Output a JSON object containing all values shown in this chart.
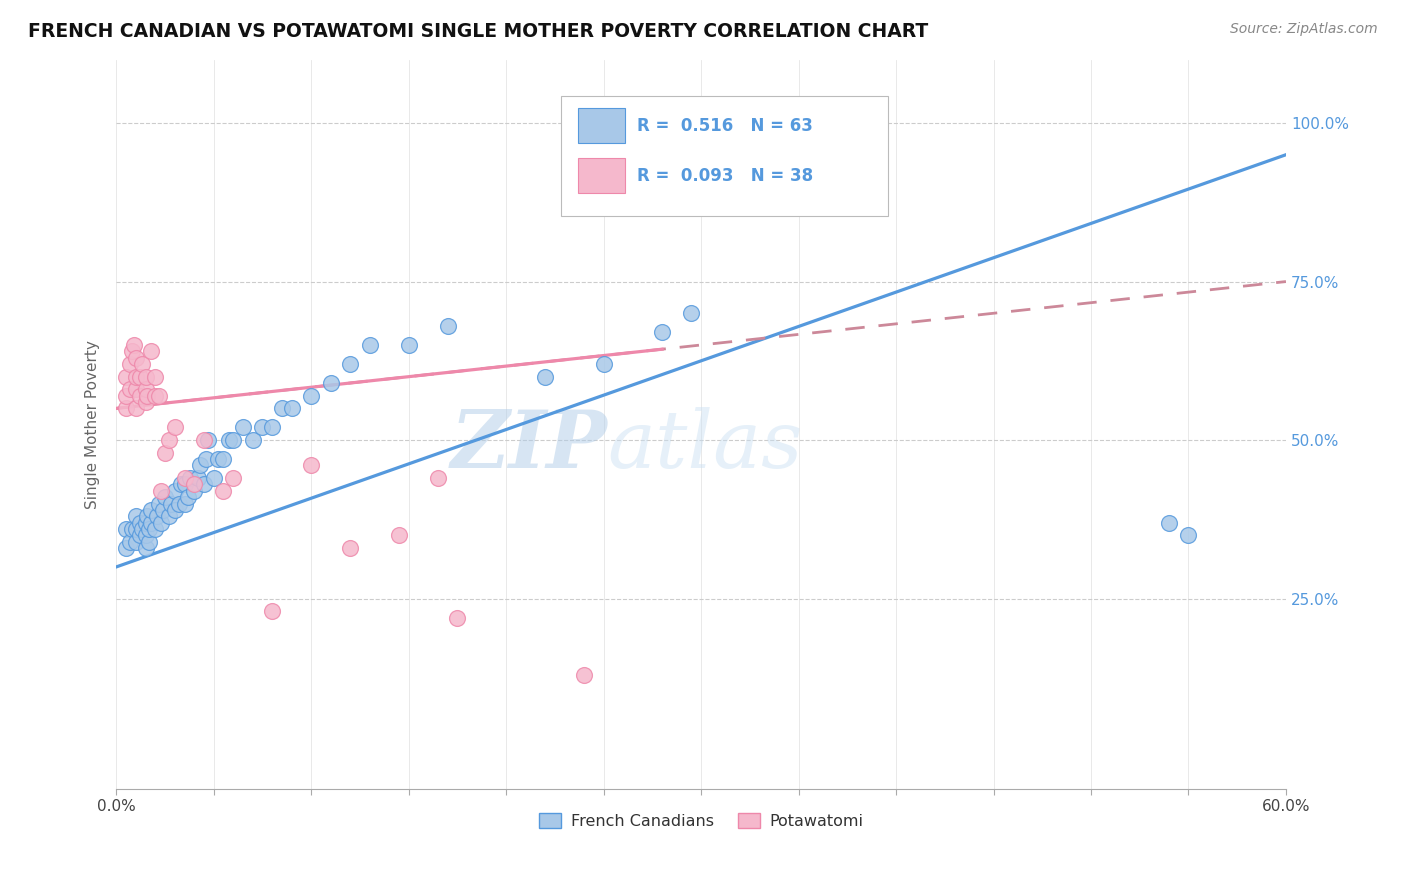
{
  "title": "FRENCH CANADIAN VS POTAWATOMI SINGLE MOTHER POVERTY CORRELATION CHART",
  "source": "Source: ZipAtlas.com",
  "ylabel": "Single Mother Poverty",
  "xlim": [
    0.0,
    0.6
  ],
  "ylim": [
    -0.05,
    1.1
  ],
  "plot_ylim": [
    -0.05,
    1.1
  ],
  "xtick_values": [
    0.0,
    0.1,
    0.2,
    0.3,
    0.4,
    0.5,
    0.6
  ],
  "xtick_show": [
    0.0,
    0.6
  ],
  "ytick_values": [
    0.25,
    0.5,
    0.75,
    1.0
  ],
  "ytick_labels": [
    "25.0%",
    "50.0%",
    "75.0%",
    "100.0%"
  ],
  "blue_R": 0.516,
  "blue_N": 63,
  "pink_R": 0.093,
  "pink_N": 38,
  "blue_color": "#a8c8e8",
  "pink_color": "#f5b8cc",
  "blue_line_color": "#5599dd",
  "pink_line_color": "#ee88aa",
  "pink_line_dashed_color": "#cc8899",
  "watermark_color": "#c5ddf0",
  "legend_label_blue": "French Canadians",
  "legend_label_pink": "Potawatomi",
  "blue_scatter_x": [
    0.005,
    0.005,
    0.007,
    0.008,
    0.01,
    0.01,
    0.01,
    0.012,
    0.012,
    0.013,
    0.015,
    0.015,
    0.015,
    0.016,
    0.017,
    0.017,
    0.018,
    0.018,
    0.02,
    0.021,
    0.022,
    0.023,
    0.024,
    0.025,
    0.027,
    0.028,
    0.03,
    0.03,
    0.032,
    0.033,
    0.035,
    0.035,
    0.037,
    0.038,
    0.04,
    0.042,
    0.043,
    0.045,
    0.046,
    0.047,
    0.05,
    0.052,
    0.055,
    0.058,
    0.06,
    0.065,
    0.07,
    0.075,
    0.08,
    0.085,
    0.09,
    0.1,
    0.11,
    0.12,
    0.13,
    0.15,
    0.17,
    0.22,
    0.25,
    0.28,
    0.295,
    0.54,
    0.55
  ],
  "blue_scatter_y": [
    0.33,
    0.36,
    0.34,
    0.36,
    0.34,
    0.36,
    0.38,
    0.35,
    0.37,
    0.36,
    0.33,
    0.35,
    0.37,
    0.38,
    0.34,
    0.36,
    0.37,
    0.39,
    0.36,
    0.38,
    0.4,
    0.37,
    0.39,
    0.41,
    0.38,
    0.4,
    0.39,
    0.42,
    0.4,
    0.43,
    0.4,
    0.43,
    0.41,
    0.44,
    0.42,
    0.44,
    0.46,
    0.43,
    0.47,
    0.5,
    0.44,
    0.47,
    0.47,
    0.5,
    0.5,
    0.52,
    0.5,
    0.52,
    0.52,
    0.55,
    0.55,
    0.57,
    0.59,
    0.62,
    0.65,
    0.65,
    0.68,
    0.6,
    0.62,
    0.67,
    0.7,
    0.37,
    0.35
  ],
  "pink_scatter_x": [
    0.005,
    0.005,
    0.005,
    0.007,
    0.007,
    0.008,
    0.009,
    0.01,
    0.01,
    0.01,
    0.01,
    0.012,
    0.012,
    0.013,
    0.015,
    0.015,
    0.015,
    0.016,
    0.018,
    0.02,
    0.02,
    0.022,
    0.023,
    0.025,
    0.027,
    0.03,
    0.035,
    0.04,
    0.045,
    0.055,
    0.06,
    0.08,
    0.1,
    0.12,
    0.145,
    0.165,
    0.175,
    0.24
  ],
  "pink_scatter_y": [
    0.55,
    0.57,
    0.6,
    0.58,
    0.62,
    0.64,
    0.65,
    0.55,
    0.58,
    0.6,
    0.63,
    0.57,
    0.6,
    0.62,
    0.56,
    0.58,
    0.6,
    0.57,
    0.64,
    0.57,
    0.6,
    0.57,
    0.42,
    0.48,
    0.5,
    0.52,
    0.44,
    0.43,
    0.5,
    0.42,
    0.44,
    0.23,
    0.46,
    0.33,
    0.35,
    0.44,
    0.22,
    0.13
  ],
  "blue_line_x0": 0.0,
  "blue_line_x1": 0.6,
  "blue_line_y0": 0.3,
  "blue_line_y1": 0.95,
  "pink_line_x0": 0.0,
  "pink_line_x1": 0.6,
  "pink_line_y0": 0.55,
  "pink_line_y1": 0.75
}
